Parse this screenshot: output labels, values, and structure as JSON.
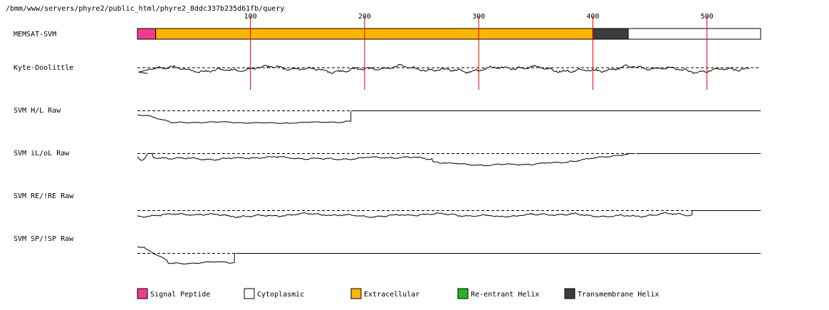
{
  "path": "/bmm/www/servers/phyre2/public_html/phyre2_8ddc337b235d61fb/query",
  "sequence_length": 547,
  "ruler_ticks": [
    "100",
    "200",
    "300",
    "400",
    "500"
  ],
  "ruler_positions": [
    100,
    200,
    300,
    400,
    500
  ],
  "tracks": [
    {
      "id": "memsat",
      "label": "MEMSAT-SVM"
    },
    {
      "id": "kd",
      "label": "Kyte-Doolittle"
    },
    {
      "id": "hl",
      "label": "SVM H/L Raw"
    },
    {
      "id": "ilol",
      "label": "SVM iL/oL Raw"
    },
    {
      "id": "reire",
      "label": "SVM RE/!RE Raw"
    },
    {
      "id": "spisp",
      "label": "SVM SP/!SP Raw"
    }
  ],
  "memsat_segments": [
    {
      "start": 1,
      "end": 17,
      "type": "signal"
    },
    {
      "start": 17,
      "end": 400,
      "type": "extracellular"
    },
    {
      "start": 400,
      "end": 431,
      "type": "transmembrane"
    },
    {
      "start": 431,
      "end": 547,
      "type": "cytoplasmic"
    }
  ],
  "colors": {
    "signal": "#f03c8c",
    "cytoplasmic": "#ffffff",
    "extracellular": "#ffb400",
    "reentrant": "#28b428",
    "transmembrane": "#3c3c3c",
    "ruler": "#e00000"
  },
  "legend": [
    {
      "type": "signal",
      "label": "Signal Peptide"
    },
    {
      "type": "cytoplasmic",
      "label": "Cytoplasmic"
    },
    {
      "type": "extracellular",
      "label": "Extracellular"
    },
    {
      "type": "reentrant",
      "label": "Re-entrant Helix"
    },
    {
      "type": "transmembrane",
      "label": "Transmembrane Helix"
    }
  ],
  "profile_ends": {
    "kd": 537,
    "hl": 188,
    "ilol": 437,
    "reire": 487,
    "spisp": 86
  }
}
